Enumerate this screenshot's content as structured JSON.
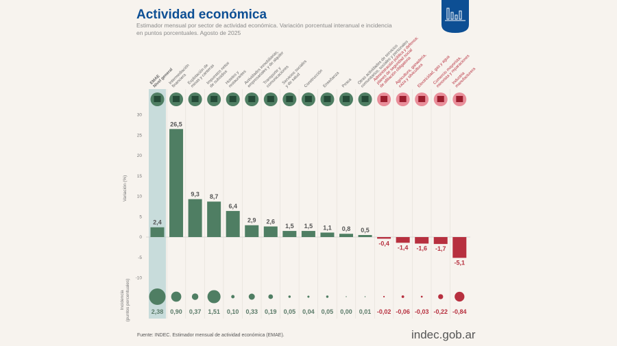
{
  "header": {
    "title": "Actividad económica",
    "subtitle_lines": [
      "Estimador mensual por sector de actividad económica. Variación porcentual interanual e incidencia",
      "en puntos porcentuales. Agosto de 2025"
    ]
  },
  "footer": {
    "source": "Fuente: INDEC. Estimador mensual de actividad económica (EMAE).",
    "logo_text": "indec.gob.ar",
    "badge_icon": "bar-chart-icon"
  },
  "colors": {
    "positive": "#4f7e63",
    "negative": "#b7303f",
    "highlight": "#c8dcdb",
    "title": "#0d4f94"
  },
  "chart_data": {
    "type": "bar",
    "ylabel": "Variación (%)",
    "ylim": [
      -10,
      30
    ],
    "yticks": [
      30,
      25,
      20,
      15,
      10,
      5,
      0,
      -5,
      -10
    ],
    "grid": false,
    "categories": [
      [
        "EMAE",
        "Nivel general"
      ],
      [
        "Intermediación",
        "financiera"
      ],
      [
        "Explotación de",
        "minas y canteras"
      ],
      [
        "Impuestos netos",
        "de subsidios"
      ],
      [
        "Hoteles y",
        "restaurantes"
      ],
      [
        "Actividades inmobiliarias,",
        "empresariales y de alquiler"
      ],
      [
        "Transporte y",
        "comunicaciones"
      ],
      [
        "Servicios sociales",
        "y de salud"
      ],
      [
        "Construcción"
      ],
      [
        "Enseñanza"
      ],
      [
        "Pesca"
      ],
      [
        "Otras actividades de servicios",
        "comunitarios, sociales y personales"
      ],
      [
        "Administración pública y defensa;",
        "planes de seguridad social",
        "de afiliación obligatoria"
      ],
      [
        "Agricultura, ganadería,",
        "caza y silvicultura"
      ],
      [
        "Electricidad, gas y agua"
      ],
      [
        "Comercio mayorista,",
        "minorista y reparaciones"
      ],
      [
        "Industria",
        "manufacturera"
      ]
    ],
    "values": [
      2.4,
      26.5,
      9.3,
      8.7,
      6.4,
      2.9,
      2.6,
      1.5,
      1.5,
      1.1,
      0.8,
      0.5,
      -0.4,
      -1.4,
      -1.6,
      -1.7,
      -5.1
    ],
    "value_labels": [
      "2,4",
      "26,5",
      "9,3",
      "8,7",
      "6,4",
      "2,9",
      "2,6",
      "1,5",
      "1,5",
      "1,1",
      "0,8",
      "0,5",
      "-0,4",
      "-1,4",
      "-1,6",
      "-1,7",
      "-5,1"
    ],
    "incidence_label": [
      "Incidencia",
      "(puntos porcentuales)"
    ],
    "incidence": [
      2.38,
      0.9,
      0.37,
      1.51,
      0.1,
      0.33,
      0.19,
      0.05,
      0.04,
      0.05,
      0.0,
      0.01,
      -0.02,
      -0.06,
      -0.03,
      -0.22,
      -0.84
    ],
    "incidence_labels": [
      "2,38",
      "0,90",
      "0,37",
      "1,51",
      "0,10",
      "0,33",
      "0,19",
      "0,05",
      "0,04",
      "0,05",
      "0,00",
      "0,01",
      "-0,02",
      "-0,06",
      "-0,03",
      "-0,22",
      "-0,84"
    ]
  }
}
